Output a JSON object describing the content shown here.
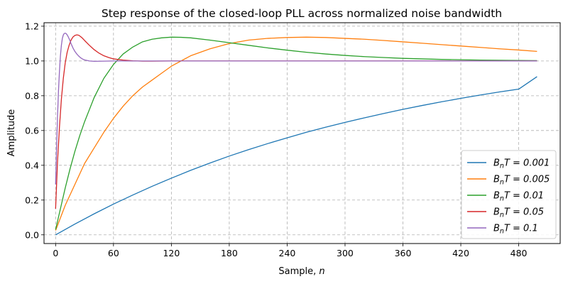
{
  "chart_data": {
    "type": "line",
    "title": "Step response of the closed-loop PLL across normalized noise bandwidth",
    "xlabel": "Sample, n",
    "ylabel": "Amplitude",
    "xlim": [
      -12,
      523
    ],
    "ylim": [
      -0.05,
      1.22
    ],
    "xticks": [
      0,
      60,
      120,
      180,
      240,
      300,
      360,
      420,
      480
    ],
    "yticks": [
      0.0,
      0.2,
      0.4,
      0.6,
      0.8,
      1.0,
      1.2
    ],
    "xtick_labels": [
      "0",
      "60",
      "120",
      "180",
      "240",
      "300",
      "360",
      "420",
      "480"
    ],
    "ytick_labels": [
      "0.0",
      "0.2",
      "0.4",
      "0.6",
      "0.8",
      "1.0",
      "1.2"
    ],
    "grid": true,
    "grid_style": "dashed",
    "legend_position": "lower-right",
    "series": [
      {
        "name": "B_nT = 0.001",
        "label_main": "B",
        "label_sub": "n",
        "label_rest": "T = 0.001",
        "color": "#1f77b4",
        "x": [
          0,
          20,
          40,
          60,
          80,
          100,
          120,
          140,
          160,
          180,
          200,
          220,
          240,
          260,
          280,
          300,
          320,
          340,
          360,
          380,
          400,
          420,
          440,
          460,
          480,
          499
        ],
        "y": [
          0.0,
          0.062,
          0.121,
          0.177,
          0.229,
          0.279,
          0.326,
          0.371,
          0.413,
          0.453,
          0.49,
          0.525,
          0.558,
          0.59,
          0.619,
          0.647,
          0.673,
          0.698,
          0.722,
          0.744,
          0.765,
          0.785,
          0.804,
          0.822,
          0.838,
          0.91
        ]
      },
      {
        "name": "B_nT = 0.005",
        "label_main": "B",
        "label_sub": "n",
        "label_rest": "T = 0.005",
        "color": "#ff7f0e",
        "x": [
          0,
          10,
          20,
          30,
          40,
          50,
          60,
          70,
          80,
          90,
          100,
          110,
          120,
          130,
          140,
          160,
          180,
          200,
          220,
          240,
          260,
          280,
          300,
          320,
          340,
          360,
          380,
          400,
          420,
          440,
          460,
          480,
          499
        ],
        "y": [
          0.025,
          0.17,
          0.29,
          0.41,
          0.5,
          0.59,
          0.67,
          0.74,
          0.8,
          0.85,
          0.89,
          0.93,
          0.97,
          1.0,
          1.03,
          1.07,
          1.1,
          1.12,
          1.13,
          1.135,
          1.137,
          1.135,
          1.13,
          1.125,
          1.118,
          1.11,
          1.102,
          1.094,
          1.086,
          1.078,
          1.07,
          1.063,
          1.055
        ]
      },
      {
        "name": "B_nT = 0.01",
        "label_main": "B",
        "label_sub": "n",
        "label_rest": "T = 0.01",
        "color": "#2ca02c",
        "x": [
          0,
          5,
          10,
          15,
          20,
          25,
          30,
          35,
          40,
          50,
          60,
          70,
          80,
          90,
          100,
          110,
          120,
          130,
          140,
          160,
          180,
          200,
          220,
          240,
          260,
          280,
          300,
          320,
          340,
          360,
          380,
          400,
          420,
          440,
          460,
          480,
          499
        ],
        "y": [
          0.03,
          0.15,
          0.27,
          0.38,
          0.48,
          0.57,
          0.65,
          0.72,
          0.79,
          0.9,
          0.98,
          1.04,
          1.08,
          1.11,
          1.125,
          1.133,
          1.137,
          1.136,
          1.133,
          1.12,
          1.105,
          1.09,
          1.075,
          1.062,
          1.05,
          1.04,
          1.032,
          1.025,
          1.02,
          1.015,
          1.012,
          1.009,
          1.007,
          1.005,
          1.004,
          1.003,
          1.002
        ]
      },
      {
        "name": "B_nT = 0.05",
        "label_main": "B",
        "label_sub": "n",
        "label_rest": "T = 0.05",
        "color": "#d62728",
        "x": [
          0,
          2,
          4,
          6,
          8,
          10,
          12,
          14,
          16,
          18,
          20,
          22,
          24,
          26,
          28,
          30,
          35,
          40,
          45,
          50,
          55,
          60,
          70,
          80,
          90,
          100,
          120,
          150,
          200,
          300,
          400,
          499
        ],
        "y": [
          0.15,
          0.42,
          0.62,
          0.78,
          0.9,
          0.99,
          1.05,
          1.09,
          1.12,
          1.138,
          1.147,
          1.15,
          1.148,
          1.14,
          1.13,
          1.118,
          1.09,
          1.065,
          1.045,
          1.03,
          1.02,
          1.012,
          1.005,
          1.001,
          0.999,
          0.999,
          1.0,
          1.0,
          1.0,
          1.0,
          1.0,
          1.0
        ]
      },
      {
        "name": "B_nT = 0.1",
        "label_main": "B",
        "label_sub": "n",
        "label_rest": "T = 0.1",
        "color": "#9467bd",
        "x": [
          0,
          1,
          2,
          3,
          4,
          5,
          6,
          7,
          8,
          9,
          10,
          11,
          12,
          13,
          14,
          15,
          16,
          18,
          20,
          22,
          24,
          26,
          28,
          30,
          35,
          40,
          50,
          60,
          80,
          100,
          200,
          300,
          400,
          499
        ],
        "y": [
          0.29,
          0.5,
          0.68,
          0.83,
          0.94,
          1.03,
          1.09,
          1.13,
          1.15,
          1.158,
          1.16,
          1.157,
          1.15,
          1.14,
          1.128,
          1.115,
          1.1,
          1.075,
          1.055,
          1.04,
          1.028,
          1.018,
          1.011,
          1.006,
          1.0,
          0.998,
          0.999,
          1.0,
          1.0,
          1.0,
          1.0,
          1.0,
          1.0,
          1.0
        ]
      }
    ]
  }
}
